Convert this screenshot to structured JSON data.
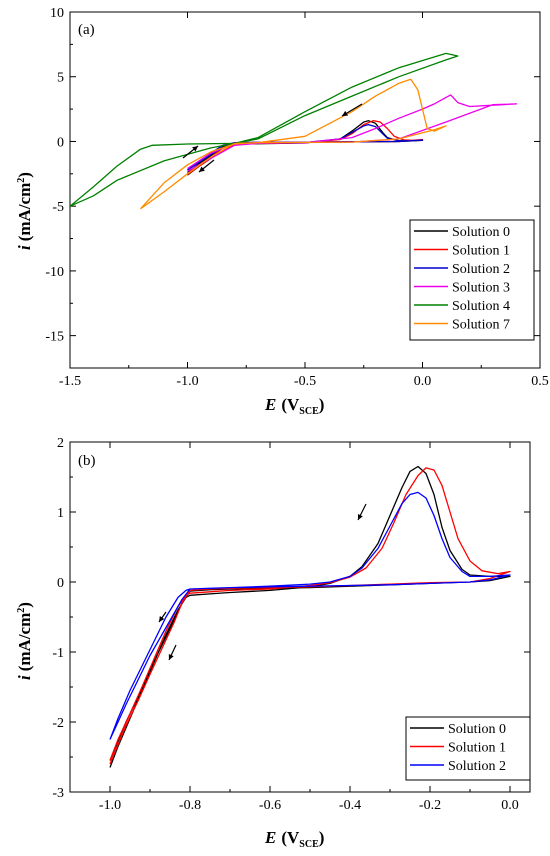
{
  "chart_data": [
    {
      "panel_label": "(a)",
      "type": "line",
      "xlabel_main": "E",
      "xlabel_unit": "(V",
      "xlabel_sub": "SCE",
      "xlabel_close": ")",
      "ylabel_main": "i",
      "ylabel_unit": "(mA/cm",
      "ylabel_sup": "2",
      "ylabel_close": ")",
      "xlim": [
        -1.5,
        0.5
      ],
      "ylim": [
        -17.5,
        10
      ],
      "x_ticks": [
        -1.5,
        -1.0,
        -0.5,
        0.0,
        0.5
      ],
      "x_tick_labels": [
        "-1.5",
        "-1.0",
        "-0.5",
        "0.0",
        "0.5"
      ],
      "y_ticks": [
        -15,
        -10,
        -5,
        0,
        5,
        10
      ],
      "y_tick_labels": [
        "-15",
        "-10",
        "-5",
        "0",
        "5",
        "10"
      ],
      "legend_position": "bottom-right",
      "series": [
        {
          "name": "Solution 0",
          "color": "#000000",
          "x": [
            -1.0,
            -0.95,
            -0.9,
            -0.85,
            -0.8,
            -0.7,
            -0.5,
            -0.35,
            -0.3,
            -0.25,
            -0.23,
            -0.2,
            -0.17,
            -0.15,
            -0.1,
            -0.05,
            0.0,
            -0.1,
            -0.3,
            -0.5,
            -0.7,
            -0.8,
            -0.85,
            -0.9,
            -0.95,
            -1.0
          ],
          "y": [
            -2.6,
            -1.9,
            -1.3,
            -0.7,
            -0.2,
            -0.17,
            -0.12,
            0.2,
            0.8,
            1.5,
            1.6,
            1.4,
            0.7,
            0.3,
            0.05,
            0.05,
            0.08,
            0.0,
            -0.03,
            -0.05,
            -0.08,
            -0.1,
            -0.4,
            -1.1,
            -1.7,
            -2.4
          ]
        },
        {
          "name": "Solution 1",
          "color": "#ff0000",
          "x": [
            -1.0,
            -0.95,
            -0.9,
            -0.85,
            -0.8,
            -0.7,
            -0.5,
            -0.35,
            -0.3,
            -0.25,
            -0.21,
            -0.18,
            -0.15,
            -0.12,
            -0.08,
            -0.03,
            0.0,
            -0.1,
            -0.3,
            -0.5,
            -0.7,
            -0.8,
            -0.85,
            -0.9,
            -0.95,
            -1.0
          ],
          "y": [
            -2.55,
            -1.9,
            -1.3,
            -0.7,
            -0.2,
            -0.15,
            -0.1,
            0.15,
            0.6,
            1.3,
            1.6,
            1.5,
            1.0,
            0.4,
            0.12,
            0.08,
            0.15,
            0.0,
            -0.02,
            -0.05,
            -0.08,
            -0.1,
            -0.5,
            -1.2,
            -1.8,
            -2.5
          ]
        },
        {
          "name": "Solution 2",
          "color": "#0000cc",
          "x": [
            -1.0,
            -0.95,
            -0.9,
            -0.85,
            -0.8,
            -0.7,
            -0.5,
            -0.35,
            -0.3,
            -0.25,
            -0.23,
            -0.2,
            -0.17,
            -0.15,
            -0.1,
            -0.05,
            0.0,
            -0.1,
            -0.3,
            -0.5,
            -0.7,
            -0.8,
            -0.85,
            -0.9,
            -0.95,
            -1.0
          ],
          "y": [
            -2.2,
            -1.6,
            -1.0,
            -0.5,
            -0.12,
            -0.1,
            -0.08,
            0.2,
            0.7,
            1.2,
            1.3,
            1.15,
            0.6,
            0.25,
            0.05,
            0.06,
            0.1,
            0.0,
            -0.03,
            -0.05,
            -0.07,
            -0.1,
            -0.3,
            -0.9,
            -1.5,
            -2.2
          ]
        },
        {
          "name": "Solution 3",
          "color": "#ee00ee",
          "x": [
            -1.0,
            -0.9,
            -0.8,
            -0.7,
            -0.5,
            -0.3,
            -0.2,
            -0.1,
            0.0,
            0.05,
            0.1,
            0.12,
            0.15,
            0.2,
            0.3,
            0.4,
            0.3,
            0.1,
            -0.1,
            -0.3,
            -0.5,
            -0.7,
            -0.8,
            -0.9,
            -1.0
          ],
          "y": [
            -2.3,
            -1.3,
            -0.3,
            -0.15,
            -0.1,
            0.3,
            1.0,
            1.8,
            2.5,
            2.9,
            3.4,
            3.6,
            3.0,
            2.7,
            2.8,
            2.9,
            2.85,
            1.5,
            0.2,
            -0.05,
            -0.08,
            -0.1,
            -0.15,
            -0.9,
            -2.1
          ]
        },
        {
          "name": "Solution 4",
          "color": "#008000",
          "x": [
            -1.5,
            -1.4,
            -1.3,
            -1.2,
            -1.15,
            -1.0,
            -0.8,
            -0.7,
            -0.5,
            -0.3,
            -0.1,
            0.1,
            0.15,
            0.1,
            -0.1,
            -0.3,
            -0.5,
            -0.7,
            -0.9,
            -1.1,
            -1.3,
            -1.4,
            -1.5
          ],
          "y": [
            -5.0,
            -3.5,
            -1.9,
            -0.6,
            -0.3,
            -0.2,
            -0.15,
            0.3,
            2.3,
            4.2,
            5.7,
            6.8,
            6.6,
            6.3,
            5.0,
            3.5,
            2.0,
            0.2,
            -0.5,
            -1.5,
            -3.0,
            -4.2,
            -5.0
          ]
        },
        {
          "name": "Solution 7",
          "color": "#ff8c00",
          "x": [
            -1.2,
            -1.1,
            -1.0,
            -0.9,
            -0.8,
            -0.7,
            -0.5,
            -0.3,
            -0.2,
            -0.1,
            -0.05,
            -0.02,
            0.0,
            0.02,
            0.05,
            0.1,
            0.05,
            -0.1,
            -0.3,
            -0.5,
            -0.7,
            -0.8,
            -0.9,
            -1.0,
            -1.1,
            -1.2
          ],
          "y": [
            -5.2,
            -3.9,
            -2.5,
            -1.2,
            -0.15,
            -0.1,
            0.4,
            2.3,
            3.5,
            4.5,
            4.8,
            4.0,
            2.5,
            1.0,
            0.8,
            1.2,
            0.9,
            0.2,
            -0.05,
            -0.07,
            -0.1,
            -0.2,
            -0.8,
            -1.8,
            -3.2,
            -5.2
          ]
        }
      ]
    },
    {
      "panel_label": "(b)",
      "type": "line",
      "xlabel_main": "E",
      "xlabel_unit": "(V",
      "xlabel_sub": "SCE",
      "xlabel_close": ")",
      "ylabel_main": "i",
      "ylabel_unit": "(mA/cm",
      "ylabel_sup": "2",
      "ylabel_close": ")",
      "xlim": [
        -1.1,
        0.05
      ],
      "ylim": [
        -3,
        2
      ],
      "x_ticks": [
        -1.0,
        -0.8,
        -0.6,
        -0.4,
        -0.2,
        0.0
      ],
      "x_tick_labels": [
        "-1.0",
        "-0.8",
        "-0.6",
        "-0.4",
        "-0.2",
        "0.0"
      ],
      "y_ticks": [
        -3,
        -2,
        -1,
        0,
        1,
        2
      ],
      "y_tick_labels": [
        "-3",
        "-2",
        "-1",
        "0",
        "1",
        "2"
      ],
      "legend_position": "bottom-right",
      "series": [
        {
          "name": "Solution 0",
          "color": "#000000",
          "x": [
            -1.0,
            -0.98,
            -0.95,
            -0.92,
            -0.89,
            -0.86,
            -0.83,
            -0.81,
            -0.8,
            -0.75,
            -0.7,
            -0.6,
            -0.5,
            -0.45,
            -0.4,
            -0.37,
            -0.33,
            -0.3,
            -0.27,
            -0.25,
            -0.23,
            -0.21,
            -0.19,
            -0.17,
            -0.15,
            -0.12,
            -0.1,
            -0.05,
            0.0,
            -0.05,
            -0.1,
            -0.2,
            -0.3,
            -0.4,
            -0.5,
            -0.6,
            -0.7,
            -0.75,
            -0.8,
            -0.82,
            -0.84,
            -0.87,
            -0.9,
            -0.93,
            -0.96,
            -1.0
          ],
          "y": [
            -2.65,
            -2.35,
            -1.95,
            -1.55,
            -1.15,
            -0.75,
            -0.4,
            -0.22,
            -0.19,
            -0.17,
            -0.15,
            -0.12,
            -0.07,
            -0.02,
            0.08,
            0.22,
            0.55,
            0.95,
            1.35,
            1.58,
            1.65,
            1.55,
            1.25,
            0.78,
            0.45,
            0.18,
            0.1,
            0.08,
            0.08,
            0.02,
            0.0,
            -0.02,
            -0.04,
            -0.06,
            -0.08,
            -0.09,
            -0.1,
            -0.11,
            -0.13,
            -0.3,
            -0.55,
            -0.9,
            -1.25,
            -1.65,
            -2.0,
            -2.55
          ]
        },
        {
          "name": "Solution 1",
          "color": "#ff0000",
          "x": [
            -1.0,
            -0.98,
            -0.95,
            -0.92,
            -0.89,
            -0.86,
            -0.83,
            -0.81,
            -0.8,
            -0.75,
            -0.7,
            -0.6,
            -0.5,
            -0.45,
            -0.4,
            -0.36,
            -0.32,
            -0.29,
            -0.26,
            -0.23,
            -0.21,
            -0.19,
            -0.17,
            -0.15,
            -0.13,
            -0.1,
            -0.07,
            -0.03,
            0.0,
            -0.05,
            -0.1,
            -0.2,
            -0.3,
            -0.4,
            -0.5,
            -0.6,
            -0.7,
            -0.75,
            -0.8,
            -0.82,
            -0.84,
            -0.87,
            -0.9,
            -0.93,
            -0.96,
            -1.0
          ],
          "y": [
            -2.55,
            -2.25,
            -1.88,
            -1.5,
            -1.1,
            -0.7,
            -0.35,
            -0.19,
            -0.16,
            -0.14,
            -0.12,
            -0.1,
            -0.05,
            -0.01,
            0.07,
            0.2,
            0.48,
            0.85,
            1.25,
            1.52,
            1.63,
            1.6,
            1.38,
            1.0,
            0.62,
            0.3,
            0.16,
            0.12,
            0.15,
            0.05,
            0.0,
            -0.01,
            -0.03,
            -0.05,
            -0.07,
            -0.08,
            -0.09,
            -0.1,
            -0.12,
            -0.3,
            -0.58,
            -0.95,
            -1.32,
            -1.7,
            -2.05,
            -2.6
          ]
        },
        {
          "name": "Solution 2",
          "color": "#0000ff",
          "x": [
            -1.0,
            -0.98,
            -0.95,
            -0.92,
            -0.89,
            -0.86,
            -0.83,
            -0.81,
            -0.8,
            -0.75,
            -0.7,
            -0.6,
            -0.5,
            -0.45,
            -0.4,
            -0.37,
            -0.33,
            -0.3,
            -0.27,
            -0.25,
            -0.23,
            -0.21,
            -0.19,
            -0.17,
            -0.15,
            -0.12,
            -0.1,
            -0.05,
            0.0,
            -0.05,
            -0.1,
            -0.2,
            -0.3,
            -0.4,
            -0.5,
            -0.6,
            -0.7,
            -0.75,
            -0.8,
            -0.82,
            -0.84,
            -0.87,
            -0.9,
            -0.93,
            -0.96,
            -1.0
          ],
          "y": [
            -2.25,
            -1.95,
            -1.55,
            -1.2,
            -0.85,
            -0.5,
            -0.22,
            -0.12,
            -0.1,
            -0.09,
            -0.08,
            -0.06,
            -0.03,
            0.0,
            0.08,
            0.2,
            0.48,
            0.8,
            1.12,
            1.25,
            1.28,
            1.2,
            0.95,
            0.62,
            0.35,
            0.15,
            0.08,
            0.08,
            0.1,
            0.03,
            0.0,
            -0.02,
            -0.04,
            -0.05,
            -0.06,
            -0.07,
            -0.08,
            -0.09,
            -0.1,
            -0.25,
            -0.45,
            -0.75,
            -1.05,
            -1.4,
            -1.75,
            -2.25
          ]
        }
      ]
    }
  ]
}
